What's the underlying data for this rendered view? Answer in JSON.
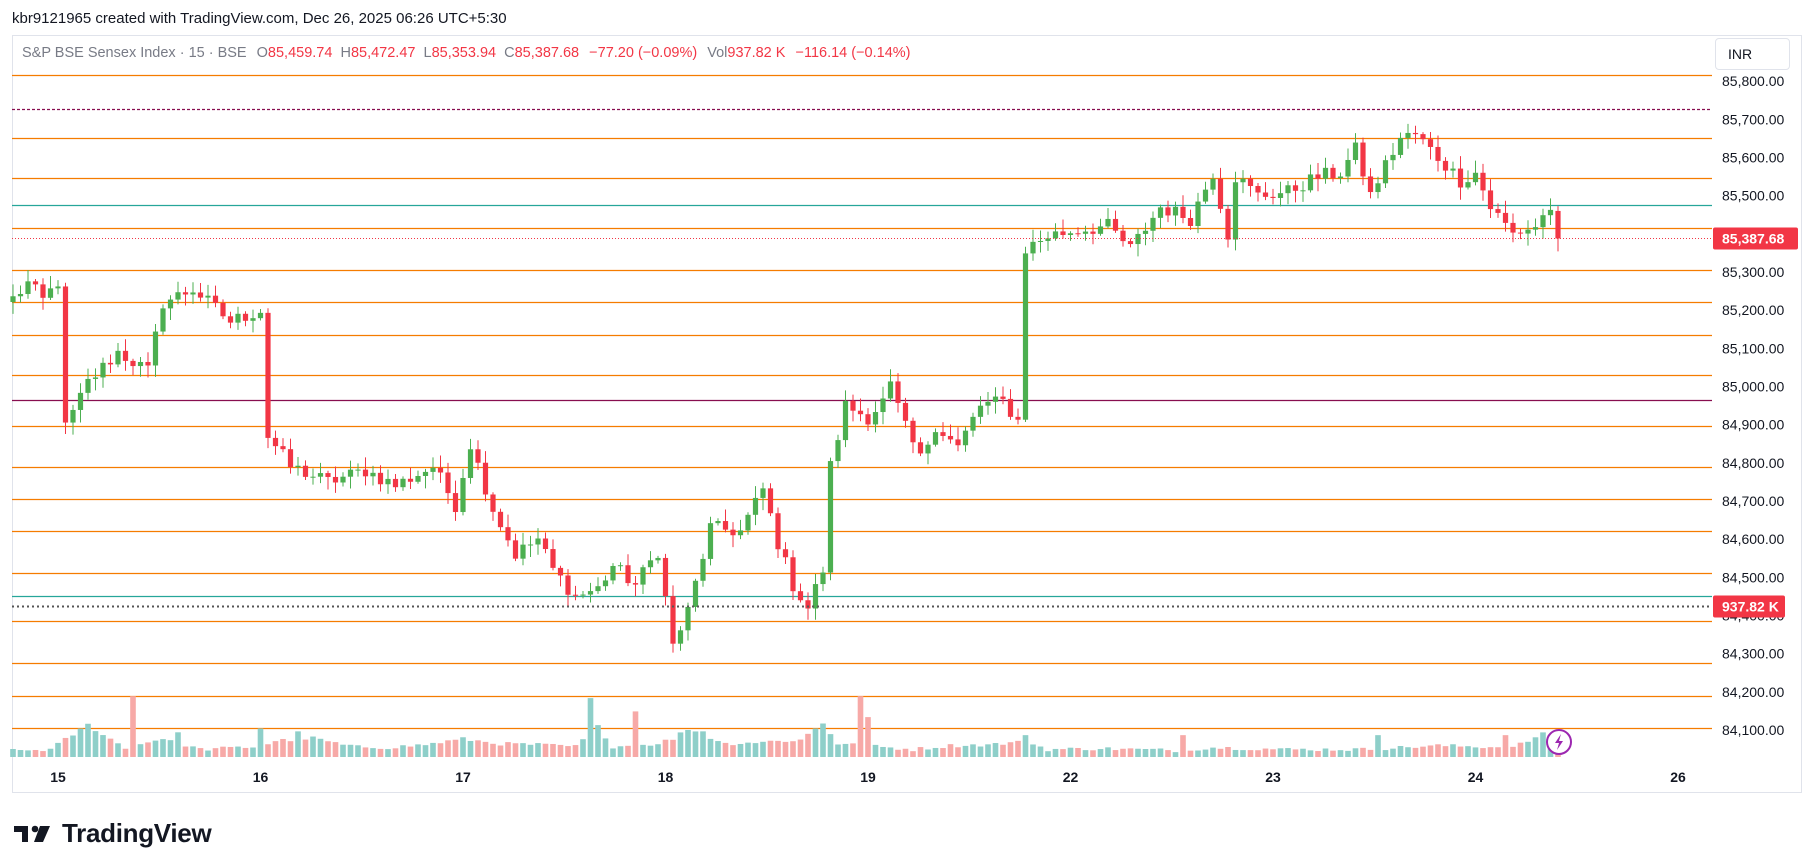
{
  "header": {
    "attribution": "kbr9121965 created with TradingView.com, Dec 26, 2025 06:26 UTC+5:30"
  },
  "legend": {
    "symbol": "S&P BSE Sensex Index · 15 · BSE",
    "o_label": "O",
    "o_value": "85,459.74",
    "h_label": "H",
    "h_value": "85,472.47",
    "l_label": "L",
    "l_value": "85,353.94",
    "c_label": "C",
    "c_value": "85,387.68",
    "change": "−77.20 (−0.09%)",
    "vol_label": "Vol",
    "vol_value": "937.82 K",
    "vol_change": "−116.14 (−0.14%)"
  },
  "currency_button": "INR",
  "brand": {
    "name": "TradingView"
  },
  "colors": {
    "up": "#26a69a",
    "up_candle": "#4caf50",
    "down": "#f23645",
    "level_line": "#f57c00",
    "teal_line": "#26a69a",
    "maroon_line": "#880e4f",
    "vol_up": "#8ecfc9",
    "vol_down": "#f7a9a7",
    "axis_text": "#131722"
  },
  "chart_data": {
    "type": "candlestick",
    "symbol": "S&P BSE Sensex Index",
    "interval": "15",
    "ylim": [
      84050,
      85850
    ],
    "y_ticks": [
      84100,
      84200,
      84300,
      84400,
      84500,
      84600,
      84700,
      84800,
      84900,
      85000,
      85100,
      85200,
      85300,
      85400,
      85500,
      85600,
      85700,
      85800
    ],
    "y_tick_labels": [
      "84,100.00",
      "84,200.00",
      "84,300.00",
      "84,400.00",
      "84,500.00",
      "84,600.00",
      "84,700.00",
      "84,800.00",
      "84,900.00",
      "85,000.00",
      "85,100.00",
      "85,200.00",
      "85,300.00",
      "85,400.00",
      "85,500.00",
      "85,600.00",
      "85,700.00",
      "85,800.00"
    ],
    "x_labels": [
      {
        "label": "15",
        "index": 6
      },
      {
        "label": "16",
        "index": 33
      },
      {
        "label": "17",
        "index": 60
      },
      {
        "label": "18",
        "index": 87
      },
      {
        "label": "19",
        "index": 114
      },
      {
        "label": "22",
        "index": 141
      },
      {
        "label": "23",
        "index": 168
      },
      {
        "label": "24",
        "index": 195
      },
      {
        "label": "26",
        "index": 222
      }
    ],
    "last_price": 85387.68,
    "last_price_label": "85,387.68",
    "last_volume_label": "937.82 K",
    "volume_ref": 937.82,
    "horizontal_levels": [
      {
        "price": 85815,
        "style": "solid",
        "color": "orange"
      },
      {
        "price": 85728,
        "style": "dashed",
        "color": "maroon"
      },
      {
        "price": 85650,
        "style": "solid",
        "color": "orange"
      },
      {
        "price": 85545,
        "style": "solid",
        "color": "orange"
      },
      {
        "price": 85475,
        "style": "solid",
        "color": "teal"
      },
      {
        "price": 85415,
        "style": "solid",
        "color": "orange"
      },
      {
        "price": 85305,
        "style": "solid",
        "color": "orange"
      },
      {
        "price": 85220,
        "style": "solid",
        "color": "orange"
      },
      {
        "price": 85135,
        "style": "solid",
        "color": "orange"
      },
      {
        "price": 85030,
        "style": "solid",
        "color": "orange"
      },
      {
        "price": 84965,
        "style": "solid",
        "color": "maroon"
      },
      {
        "price": 84895,
        "style": "solid",
        "color": "orange"
      },
      {
        "price": 84790,
        "style": "solid",
        "color": "orange"
      },
      {
        "price": 84705,
        "style": "solid",
        "color": "orange"
      },
      {
        "price": 84620,
        "style": "solid",
        "color": "orange"
      },
      {
        "price": 84510,
        "style": "solid",
        "color": "orange"
      },
      {
        "price": 84450,
        "style": "solid",
        "color": "teal"
      },
      {
        "price": 84385,
        "style": "solid",
        "color": "orange"
      },
      {
        "price": 84275,
        "style": "solid",
        "color": "orange"
      },
      {
        "price": 84190,
        "style": "solid",
        "color": "orange"
      },
      {
        "price": 84105,
        "style": "solid",
        "color": "orange"
      }
    ],
    "anchors": [
      [
        0,
        85230
      ],
      [
        2,
        85270
      ],
      [
        4,
        85225
      ],
      [
        6,
        85275
      ],
      [
        7,
        84890
      ],
      [
        10,
        85010
      ],
      [
        14,
        85090
      ],
      [
        18,
        85040
      ],
      [
        20,
        85220
      ],
      [
        24,
        85255
      ],
      [
        29,
        85170
      ],
      [
        33,
        85200
      ],
      [
        34,
        84870
      ],
      [
        37,
        84790
      ],
      [
        42,
        84750
      ],
      [
        47,
        84780
      ],
      [
        51,
        84740
      ],
      [
        56,
        84790
      ],
      [
        59,
        84690
      ],
      [
        61,
        84850
      ],
      [
        64,
        84680
      ],
      [
        67,
        84560
      ],
      [
        70,
        84600
      ],
      [
        72,
        84520
      ],
      [
        75,
        84450
      ],
      [
        78,
        84470
      ],
      [
        80,
        84530
      ],
      [
        83,
        84480
      ],
      [
        86,
        84570
      ],
      [
        88,
        84320
      ],
      [
        90,
        84410
      ],
      [
        93,
        84630
      ],
      [
        97,
        84620
      ],
      [
        100,
        84730
      ],
      [
        102,
        84590
      ],
      [
        104,
        84480
      ],
      [
        106,
        84420
      ],
      [
        108,
        84520
      ],
      [
        109,
        84790
      ],
      [
        111,
        84950
      ],
      [
        114,
        84920
      ],
      [
        116,
        84960
      ],
      [
        117,
        85000
      ],
      [
        119,
        84890
      ],
      [
        121,
        84810
      ],
      [
        123,
        84900
      ],
      [
        126,
        84840
      ],
      [
        129,
        84950
      ],
      [
        132,
        84960
      ],
      [
        134,
        84910
      ],
      [
        135,
        85360
      ],
      [
        138,
        85395
      ],
      [
        142,
        85410
      ],
      [
        146,
        85420
      ],
      [
        149,
        85360
      ],
      [
        153,
        85470
      ],
      [
        157,
        85440
      ],
      [
        160,
        85560
      ],
      [
        162,
        85400
      ],
      [
        163,
        85550
      ],
      [
        166,
        85500
      ],
      [
        170,
        85510
      ],
      [
        174,
        85550
      ],
      [
        177,
        85560
      ],
      [
        179,
        85620
      ],
      [
        181,
        85500
      ],
      [
        183,
        85580
      ],
      [
        185,
        85650
      ],
      [
        187,
        85660
      ],
      [
        190,
        85600
      ],
      [
        193,
        85540
      ],
      [
        195,
        85560
      ],
      [
        197,
        85470
      ],
      [
        200,
        85400
      ],
      [
        203,
        85420
      ],
      [
        205,
        85470
      ],
      [
        206,
        85387.68
      ]
    ],
    "volume_anchors": [
      [
        0,
        45
      ],
      [
        5,
        60
      ],
      [
        10,
        320
      ],
      [
        15,
        70
      ],
      [
        20,
        180
      ],
      [
        25,
        60
      ],
      [
        33,
        90
      ],
      [
        35,
        150
      ],
      [
        40,
        180
      ],
      [
        45,
        90
      ],
      [
        50,
        80
      ],
      [
        55,
        110
      ],
      [
        60,
        170
      ],
      [
        65,
        120
      ],
      [
        70,
        110
      ],
      [
        75,
        90
      ],
      [
        78,
        300
      ],
      [
        80,
        90
      ],
      [
        85,
        110
      ],
      [
        88,
        170
      ],
      [
        90,
        280
      ],
      [
        95,
        120
      ],
      [
        100,
        140
      ],
      [
        105,
        160
      ],
      [
        108,
        340
      ],
      [
        110,
        120
      ],
      [
        115,
        90
      ],
      [
        120,
        60
      ],
      [
        125,
        100
      ],
      [
        130,
        110
      ],
      [
        135,
        140
      ],
      [
        138,
        60
      ],
      [
        145,
        70
      ],
      [
        150,
        60
      ],
      [
        155,
        50
      ],
      [
        160,
        80
      ],
      [
        165,
        70
      ],
      [
        170,
        60
      ],
      [
        175,
        60
      ],
      [
        180,
        60
      ],
      [
        185,
        80
      ],
      [
        190,
        100
      ],
      [
        195,
        90
      ],
      [
        200,
        80
      ],
      [
        204,
        220
      ],
      [
        206,
        140
      ]
    ],
    "volume_spikes": {
      "16": 640,
      "22": 260,
      "33": 300,
      "38": 270,
      "77": 620,
      "83": 480,
      "92": 270,
      "113": 640,
      "114": 420,
      "135": 230,
      "156": 230,
      "182": 230,
      "199": 230,
      "205": 230
    }
  }
}
